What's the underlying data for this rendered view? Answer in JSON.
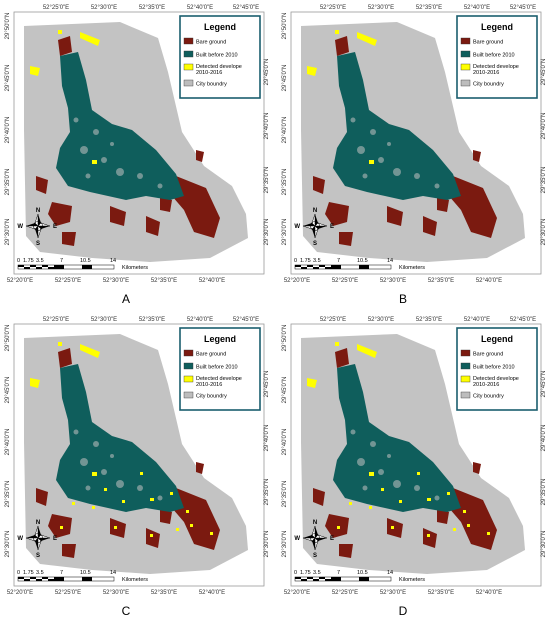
{
  "legend": {
    "title": "Legend",
    "items": [
      {
        "label": "Bare ground",
        "color": "#7b1a10"
      },
      {
        "label": "Built before 2010",
        "color": "#0f5e5c"
      },
      {
        "label": "Detected develope",
        "label2": "2010-2016",
        "color": "#ffff00"
      },
      {
        "label": "City boundry",
        "color": "#bdbdbd"
      }
    ]
  },
  "coords": {
    "top": [
      "52°25'0\"E",
      "52°30'0\"E",
      "52°35'0\"E",
      "52°40'0\"E",
      "52°45'0\"E"
    ],
    "bottom": [
      "52°20'0\"E",
      "52°25'0\"E",
      "52°30'0\"E",
      "52°35'0\"E",
      "52°40'0\"E"
    ],
    "left": [
      "29°50'0\"N",
      "29°45'0\"N",
      "29°40'0\"N",
      "29°35'0\"N",
      "29°30'0\"N"
    ],
    "right": [
      "29°45'0\"N",
      "29°40'0\"N",
      "29°35'0\"N",
      "29°30'0\"N"
    ]
  },
  "scale_bar": {
    "ticks": [
      "0",
      "1.75",
      "3.5",
      "7",
      "10.5",
      "14"
    ],
    "unit": "Kilometers"
  },
  "north_arrow": {
    "n": "N",
    "s": "S",
    "e": "E",
    "w": "W"
  },
  "panels": [
    {
      "label": "A",
      "yellow_level": "low"
    },
    {
      "label": "B",
      "yellow_level": "low"
    },
    {
      "label": "C",
      "yellow_level": "high"
    },
    {
      "label": "D",
      "yellow_level": "high"
    }
  ]
}
